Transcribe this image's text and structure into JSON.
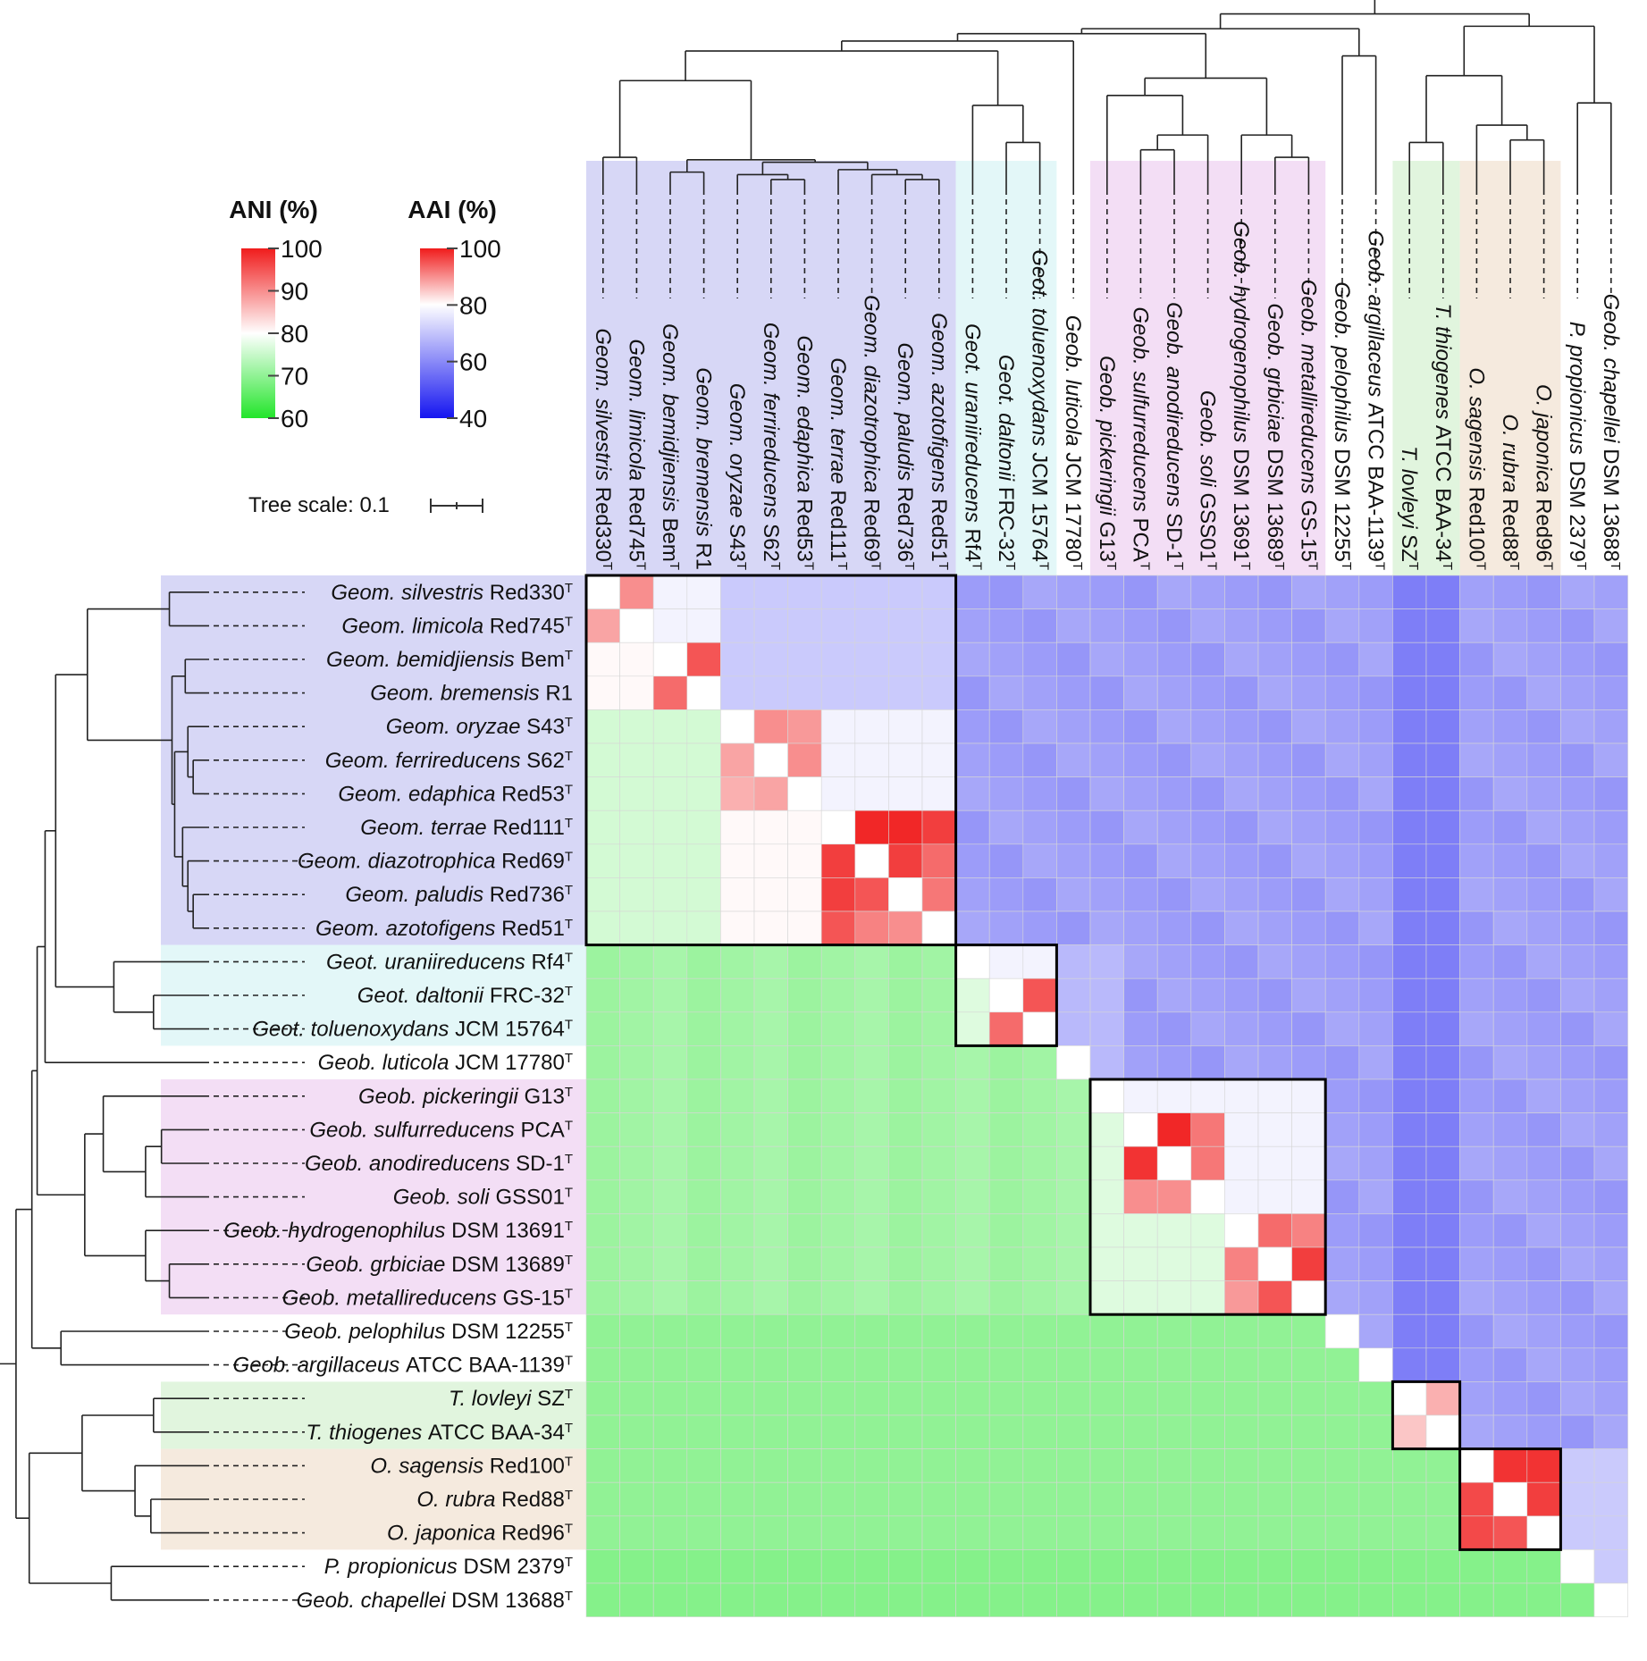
{
  "chart_data": {
    "type": "heatmap",
    "title": "",
    "description_text": {
      "lower_triangle_metric": "ANI (%)",
      "upper_triangle_metric": "AAI (%)"
    },
    "legends": [
      {
        "title": "ANI (%)",
        "ticks": [
          "100",
          "90",
          "80",
          "70",
          "60"
        ],
        "range": [
          60,
          100
        ],
        "colors": {
          "low": "#22e52a",
          "mid": "#ffffff",
          "high": "#f01c1c"
        }
      },
      {
        "title": "AAI (%)",
        "ticks": [
          "100",
          "80",
          "60",
          "40"
        ],
        "range": [
          40,
          100
        ],
        "colors": {
          "low": "#1515f0",
          "mid": "#ffffff",
          "high": "#f01c1c"
        }
      }
    ],
    "tree_scale": {
      "label": "Tree scale: 0.1"
    },
    "taxa": [
      {
        "genus": "Geom.",
        "species": "silvestris",
        "strain": "Red330",
        "type": true,
        "group": "geom"
      },
      {
        "genus": "Geom.",
        "species": "limicola",
        "strain": "Red745",
        "type": true,
        "group": "geom"
      },
      {
        "genus": "Geom.",
        "species": "bemidjiensis",
        "strain": "Bem",
        "type": true,
        "group": "geom"
      },
      {
        "genus": "Geom.",
        "species": "bremensis",
        "strain": "R1",
        "type": false,
        "group": "geom"
      },
      {
        "genus": "Geom.",
        "species": "oryzae",
        "strain": "S43",
        "type": true,
        "group": "geom"
      },
      {
        "genus": "Geom.",
        "species": "ferrireducens",
        "strain": "S62",
        "type": true,
        "group": "geom"
      },
      {
        "genus": "Geom.",
        "species": "edaphica",
        "strain": "Red53",
        "type": true,
        "group": "geom"
      },
      {
        "genus": "Geom.",
        "species": "terrae",
        "strain": "Red111",
        "type": true,
        "group": "geom"
      },
      {
        "genus": "Geom.",
        "species": "diazotrophica",
        "strain": "Red69",
        "type": true,
        "group": "geom"
      },
      {
        "genus": "Geom.",
        "species": "paludis",
        "strain": "Red736",
        "type": true,
        "group": "geom"
      },
      {
        "genus": "Geom.",
        "species": "azotofigens",
        "strain": "Red51",
        "type": true,
        "group": "geom"
      },
      {
        "genus": "Geot.",
        "species": "uraniireducens",
        "strain": "Rf4",
        "type": true,
        "group": "geot"
      },
      {
        "genus": "Geot.",
        "species": "daltonii",
        "strain": "FRC-32",
        "type": true,
        "group": "geot"
      },
      {
        "genus": "Geot.",
        "species": "toluenoxydans",
        "strain": "JCM 15764",
        "type": true,
        "group": "geot"
      },
      {
        "genus": "Geob.",
        "species": "luticola",
        "strain": "JCM 17780",
        "type": true,
        "group": "none"
      },
      {
        "genus": "Geob.",
        "species": "pickeringii",
        "strain": "G13",
        "type": true,
        "group": "geob"
      },
      {
        "genus": "Geob.",
        "species": "sulfurreducens",
        "strain": "PCA",
        "type": true,
        "group": "geob"
      },
      {
        "genus": "Geob.",
        "species": "anodireducens",
        "strain": "SD-1",
        "type": true,
        "group": "geob"
      },
      {
        "genus": "Geob.",
        "species": "soli",
        "strain": "GSS01",
        "type": true,
        "group": "geob"
      },
      {
        "genus": "Geob.",
        "species": "hydrogenophilus",
        "strain": "DSM 13691",
        "type": true,
        "group": "geob"
      },
      {
        "genus": "Geob.",
        "species": "grbiciae",
        "strain": "DSM 13689",
        "type": true,
        "group": "geob"
      },
      {
        "genus": "Geob.",
        "species": "metallireducens",
        "strain": "GS-15",
        "type": true,
        "group": "geob"
      },
      {
        "genus": "Geob.",
        "species": "pelophilus",
        "strain": "DSM 12255",
        "type": true,
        "group": "none"
      },
      {
        "genus": "Geob.",
        "species": "argillaceus",
        "strain": "ATCC BAA-1139",
        "type": true,
        "group": "none"
      },
      {
        "genus": "T.",
        "species": "lovleyi",
        "strain": "SZ",
        "type": true,
        "group": "thio"
      },
      {
        "genus": "T.",
        "species": "thiogenes",
        "strain": "ATCC BAA-34",
        "type": true,
        "group": "thio"
      },
      {
        "genus": "O.",
        "species": "sagensis",
        "strain": "Red100",
        "type": true,
        "group": "oryz"
      },
      {
        "genus": "O.",
        "species": "rubra",
        "strain": "Red88",
        "type": true,
        "group": "oryz"
      },
      {
        "genus": "O.",
        "species": "japonica",
        "strain": "Red96",
        "type": true,
        "group": "oryz"
      },
      {
        "genus": "P.",
        "species": "propionicus",
        "strain": "DSM 2379",
        "type": true,
        "group": "none"
      },
      {
        "genus": "Geob.",
        "species": "chapellei",
        "strain": "DSM 13688",
        "type": true,
        "group": "none"
      }
    ],
    "type_marker": "T",
    "group_colors": {
      "geom": "#c9c9f3",
      "geot": "#d9f4f6",
      "geob": "#efd3f2",
      "thio": "#d7f1d3",
      "oryz": "#f2e3d3",
      "none": "#ffffff"
    },
    "blocks": [
      {
        "start": 0,
        "end": 10
      },
      {
        "start": 11,
        "end": 13
      },
      {
        "start": 15,
        "end": 21
      },
      {
        "start": 24,
        "end": 25
      },
      {
        "start": 26,
        "end": 28
      }
    ],
    "tree": {
      "root": 0.01,
      "nodes": [
        {
          "id": "n_sil_lim",
          "children": [
            "t0",
            "t1"
          ],
          "d": 0.3
        },
        {
          "id": "n_bem_bre",
          "children": [
            "t2",
            "t3"
          ],
          "d": 0.33
        },
        {
          "id": "n_edap",
          "children": [
            "t5",
            "t6"
          ],
          "d": 0.345
        },
        {
          "id": "n_ory",
          "children": [
            "t4",
            "n_edap"
          ],
          "d": 0.335
        },
        {
          "id": "n_pal_azo",
          "children": [
            "t9",
            "t10"
          ],
          "d": 0.345
        },
        {
          "id": "n_dia",
          "children": [
            "t8",
            "n_pal_azo"
          ],
          "d": 0.335
        },
        {
          "id": "n_ter",
          "children": [
            "t7",
            "n_dia"
          ],
          "d": 0.325
        },
        {
          "id": "n_oryter",
          "children": [
            "n_ory",
            "n_ter"
          ],
          "d": 0.31
        },
        {
          "id": "n_bem_oryter",
          "children": [
            "n_bem_bre",
            "n_oryter"
          ],
          "d": 0.305
        },
        {
          "id": "n_geom",
          "children": [
            "n_sil_lim",
            "n_bem_oryter"
          ],
          "d": 0.145
        },
        {
          "id": "n_dal_tol",
          "children": [
            "t12",
            "t13"
          ],
          "d": 0.27
        },
        {
          "id": "n_geot",
          "children": [
            "t11",
            "n_dal_tol"
          ],
          "d": 0.195
        },
        {
          "id": "n_geom_geot",
          "children": [
            "n_geom",
            "n_geot"
          ],
          "d": 0.085
        },
        {
          "id": "n_with_lut",
          "children": [
            "n_geom_geot",
            "t14"
          ],
          "d": 0.065
        },
        {
          "id": "n_sul_ano",
          "children": [
            "t16",
            "t17"
          ],
          "d": 0.285
        },
        {
          "id": "n_sul_soli",
          "children": [
            "n_sul_ano",
            "t18"
          ],
          "d": 0.255
        },
        {
          "id": "n_pick",
          "children": [
            "t15",
            "n_sul_soli"
          ],
          "d": 0.175
        },
        {
          "id": "n_grb_met",
          "children": [
            "t20",
            "t21"
          ],
          "d": 0.3
        },
        {
          "id": "n_hyd",
          "children": [
            "t19",
            "n_grb_met"
          ],
          "d": 0.255
        },
        {
          "id": "n_geob",
          "children": [
            "n_pick",
            "n_hyd"
          ],
          "d": 0.14
        },
        {
          "id": "n_geob_lut",
          "children": [
            "n_with_lut",
            "n_geob"
          ],
          "d": 0.05
        },
        {
          "id": "n_pelo",
          "children": [
            "t22",
            "t23"
          ],
          "d": 0.095
        },
        {
          "id": "n_upper",
          "children": [
            "n_geob_lut",
            "n_pelo"
          ],
          "d": 0.04
        },
        {
          "id": "n_thio",
          "children": [
            "t24",
            "t25"
          ],
          "d": 0.27
        },
        {
          "id": "n_rub_jap",
          "children": [
            "t27",
            "t28"
          ],
          "d": 0.265
        },
        {
          "id": "n_oryz",
          "children": [
            "t26",
            "n_rub_jap"
          ],
          "d": 0.235
        },
        {
          "id": "n_thio_oryz",
          "children": [
            "n_thio",
            "n_oryz"
          ],
          "d": 0.135
        },
        {
          "id": "n_pro_cha",
          "children": [
            "t29",
            "t30"
          ],
          "d": 0.19
        },
        {
          "id": "n_lower",
          "children": [
            "n_thio_oryz",
            "n_pro_cha"
          ],
          "d": 0.035
        },
        {
          "id": "n_root",
          "children": [
            "n_upper",
            "n_lower"
          ],
          "d": 0.01
        }
      ]
    }
  }
}
